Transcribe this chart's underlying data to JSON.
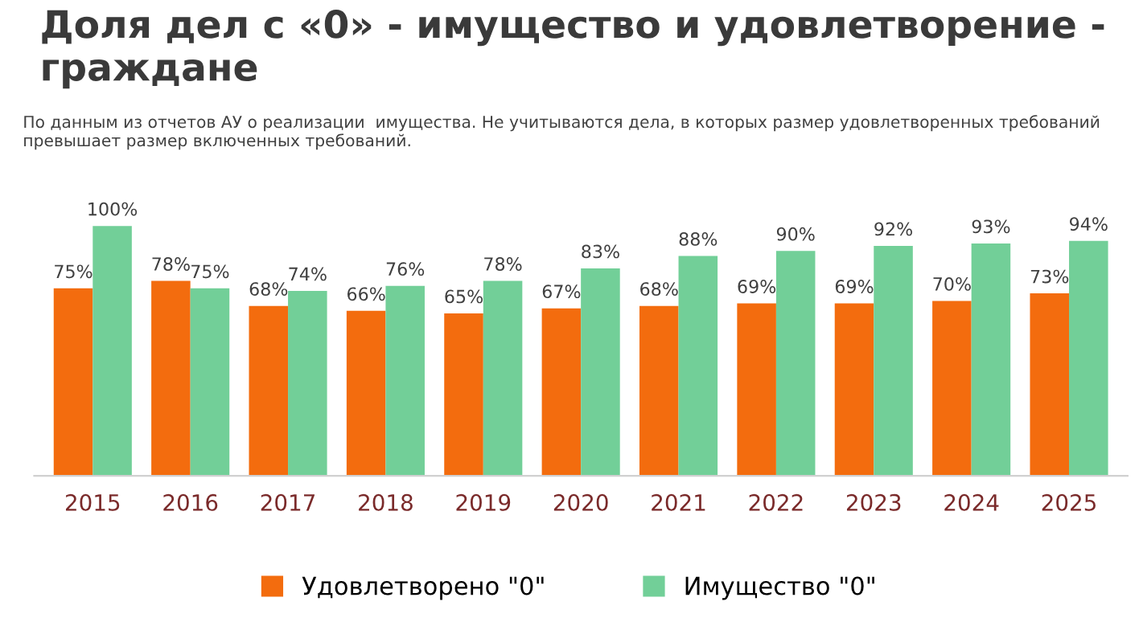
{
  "chart_data": {
    "type": "bar",
    "title": "Доля дел с «0» - имущество и удовлетворение -\nграждане",
    "subtitle": "По данным из отчетов АУ о реализации  имущества. Не учитываются дела, в которых размер удовлетворенных требований\nпревышает размер включенных требований.",
    "categories": [
      "2015",
      "2016",
      "2017",
      "2018",
      "2019",
      "2020",
      "2021",
      "2022",
      "2023",
      "2024",
      "2025"
    ],
    "series": [
      {
        "name": "Удовлетворено \"0\"",
        "color": "#f36c0e",
        "values": [
          75,
          78,
          68,
          66,
          65,
          67,
          68,
          69,
          69,
          70,
          73
        ],
        "value_labels": [
          "75%",
          "78%",
          "68%",
          "66%",
          "65%",
          "67%",
          "68%",
          "69%",
          "69%",
          "70%",
          "73%"
        ]
      },
      {
        "name": "Имущество \"0\"",
        "color": "#72cf98",
        "values": [
          100,
          75,
          74,
          76,
          78,
          83,
          88,
          90,
          92,
          93,
          94
        ],
        "value_labels": [
          "100%",
          "75%",
          "74%",
          "76%",
          "78%",
          "83%",
          "88%",
          "90%",
          "92%",
          "93%",
          "94%"
        ]
      }
    ],
    "legend": "bottom",
    "grid": false
  }
}
